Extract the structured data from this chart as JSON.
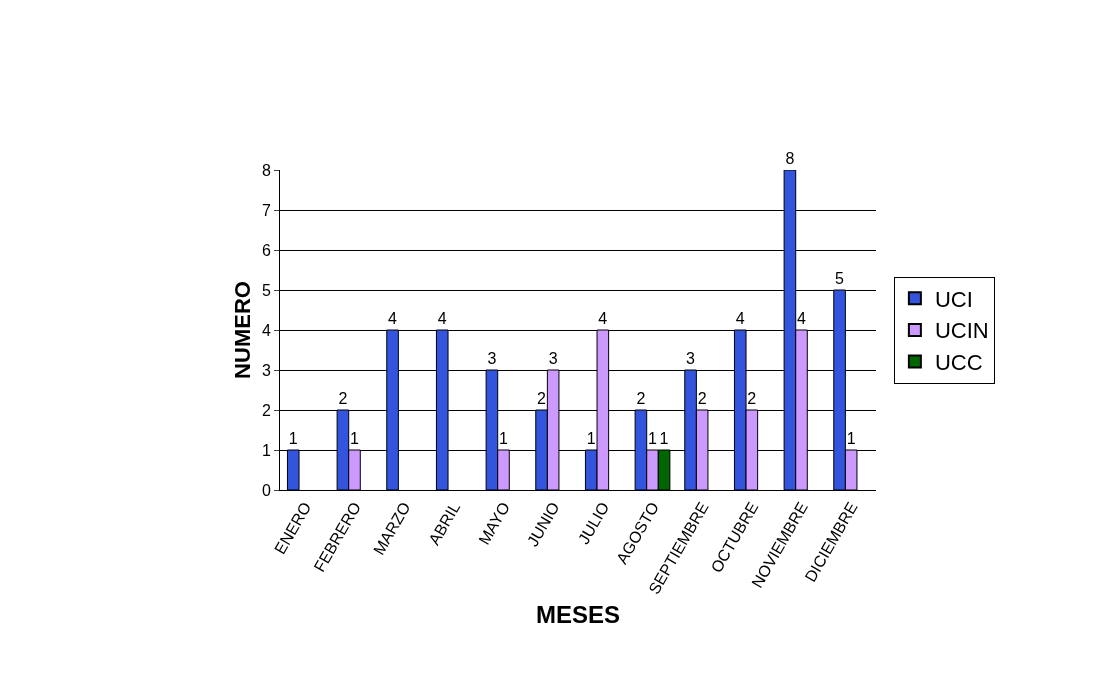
{
  "chart_data": {
    "type": "bar",
    "xlabel": "MESES",
    "ylabel": "NUMERO",
    "categories": [
      "ENERO",
      "FEBRERO",
      "MARZO",
      "ABRIL",
      "MAYO",
      "JUNIO",
      "JULIO",
      "AGOSTO",
      "SEPTIEMBRE",
      "OCTUBRE",
      "NOVIEMBRE",
      "DICIEMBRE"
    ],
    "series": [
      {
        "name": "UCI",
        "color": "#3355dd",
        "values": [
          1,
          2,
          4,
          4,
          3,
          2,
          1,
          2,
          3,
          4,
          8,
          5
        ]
      },
      {
        "name": "UCIN",
        "color": "#cc99ff",
        "values": [
          null,
          1,
          null,
          null,
          1,
          3,
          4,
          1,
          2,
          2,
          4,
          1
        ]
      },
      {
        "name": "UCC",
        "color": "#006600",
        "values": [
          null,
          null,
          null,
          null,
          null,
          null,
          null,
          1,
          null,
          null,
          null,
          null
        ]
      }
    ],
    "ylim": [
      0,
      8
    ],
    "yticks": [
      0,
      1,
      2,
      3,
      4,
      5,
      6,
      7,
      8
    ],
    "grid": "y",
    "legend": "right",
    "data_labels": true
  }
}
